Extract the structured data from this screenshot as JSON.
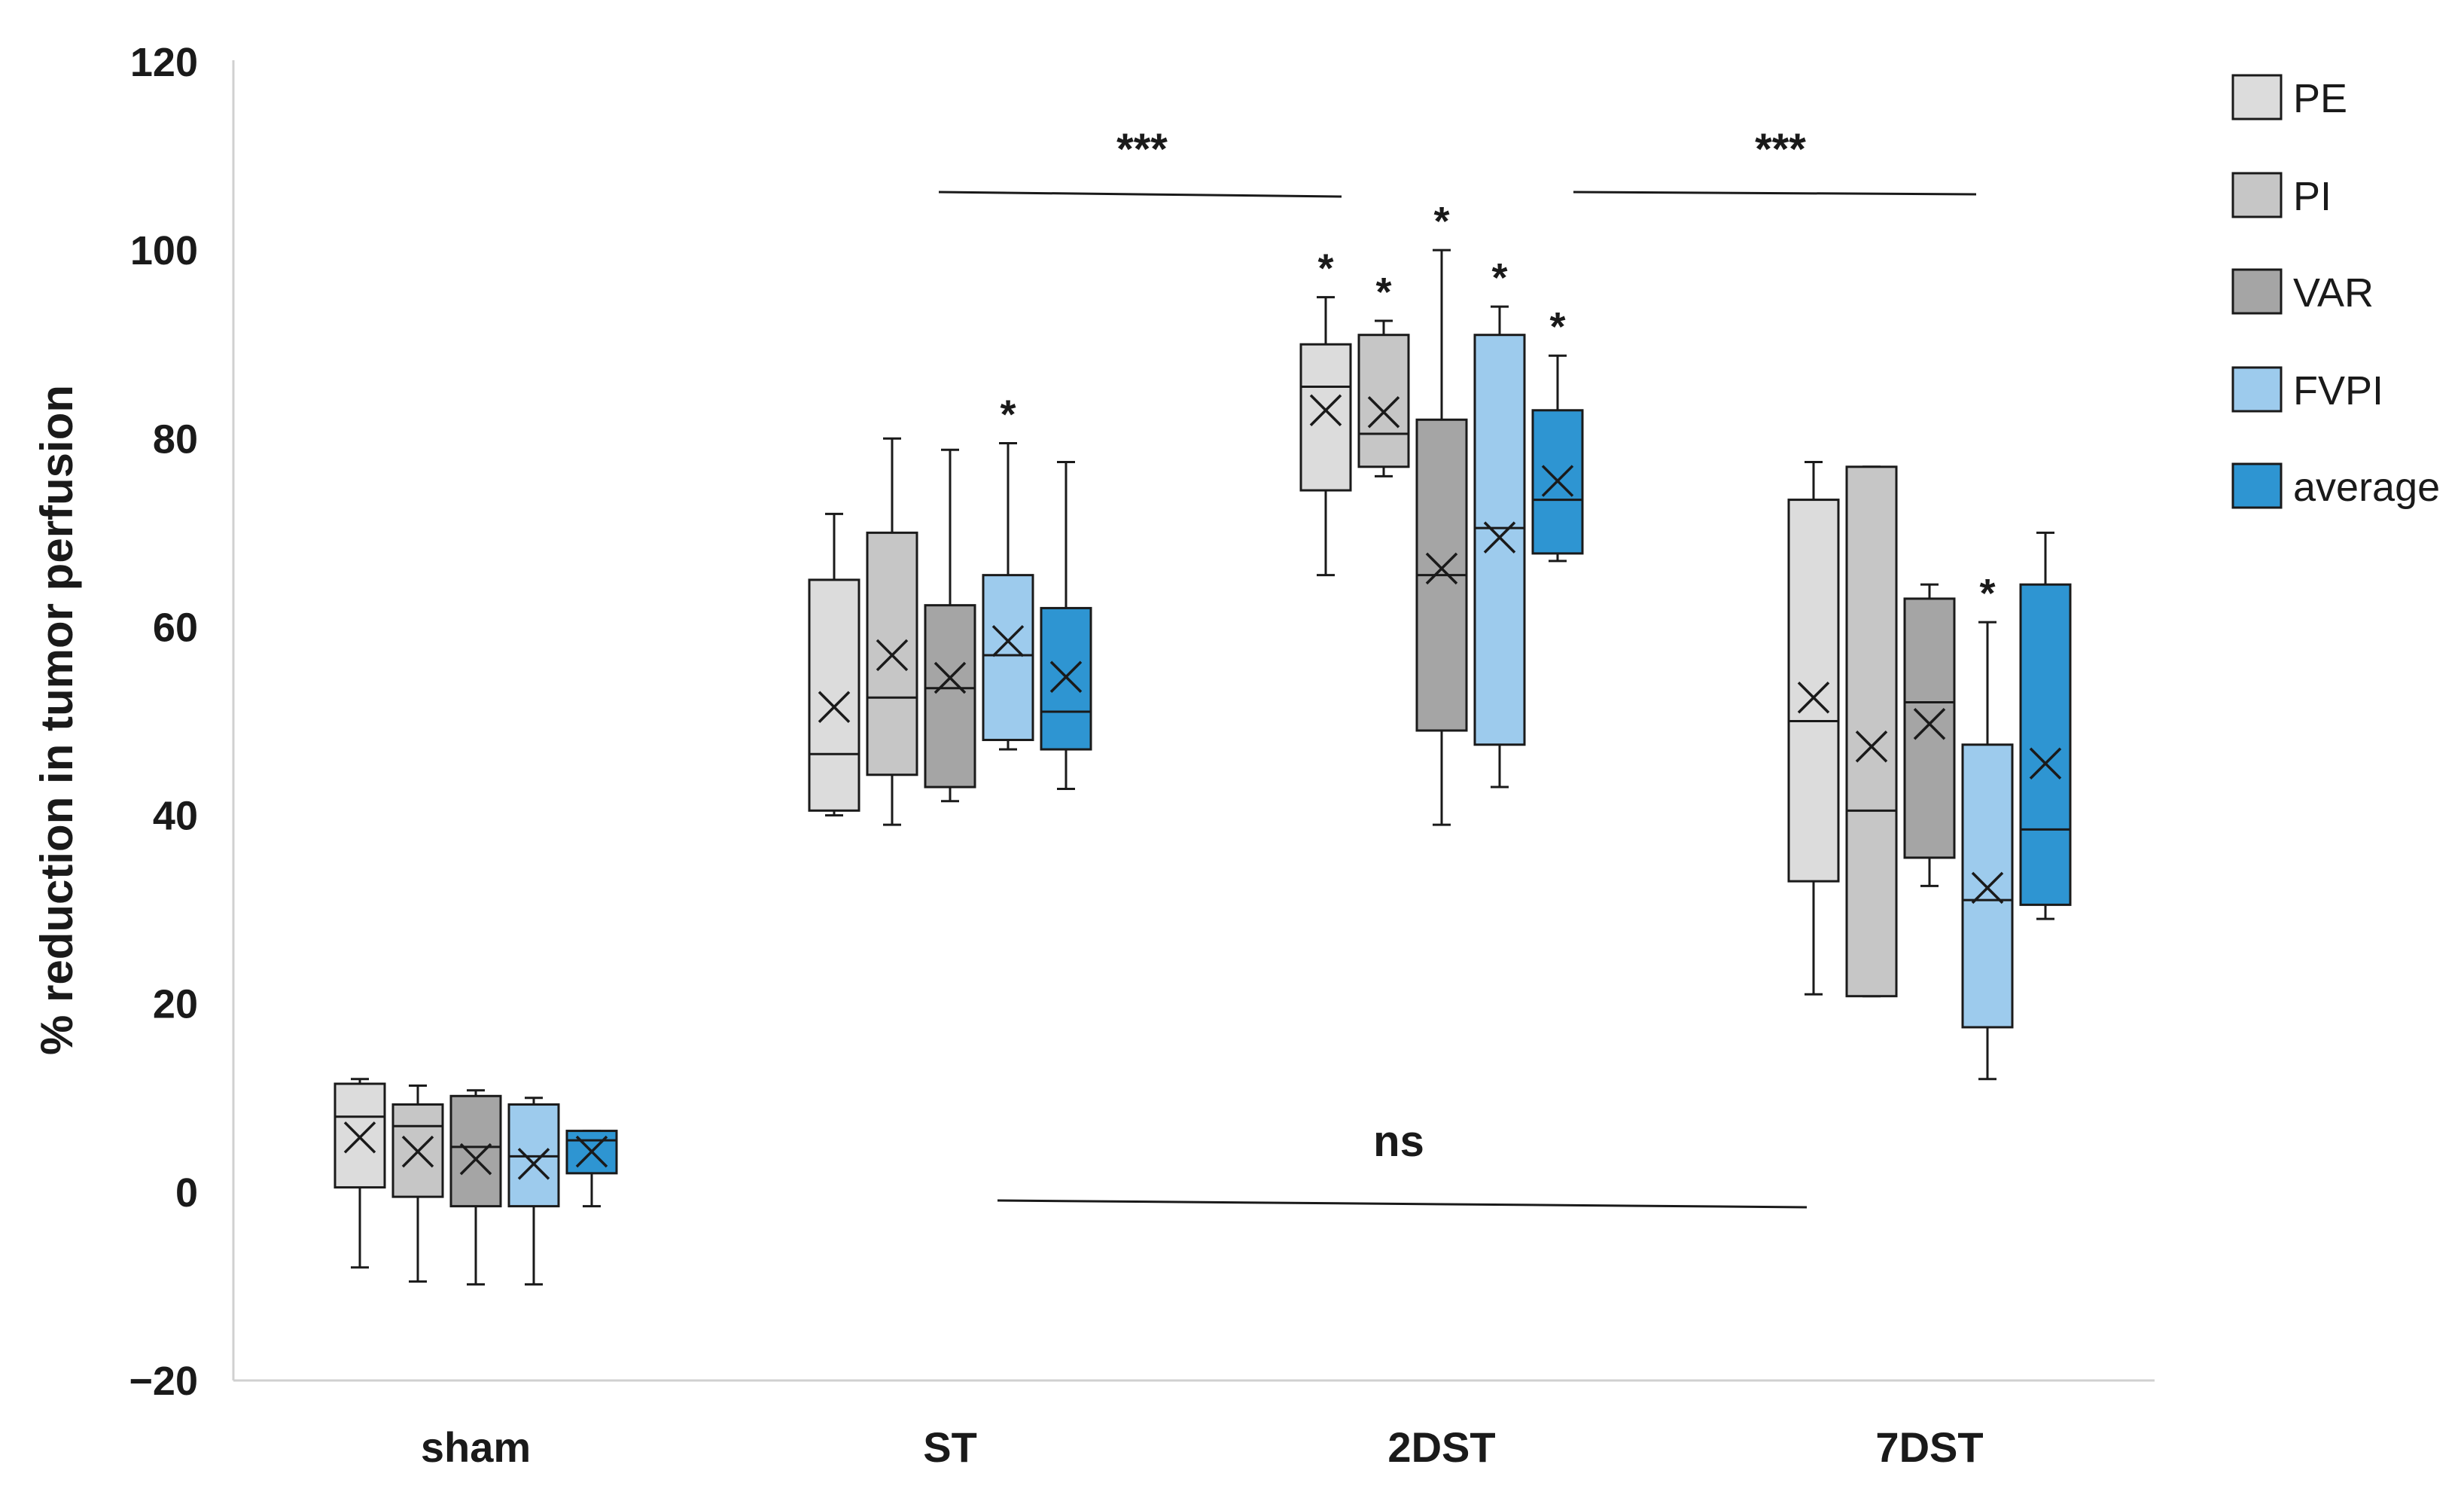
{
  "chart_data": {
    "type": "box",
    "ylabel": "% reduction in tumor perfusion",
    "xlabel": "",
    "ylim": [
      -20,
      120
    ],
    "yticks": [
      -20,
      0,
      20,
      40,
      60,
      80,
      100,
      120
    ],
    "ytick_labels": [
      "−20",
      "0",
      "20",
      "40",
      "60",
      "80",
      "100",
      "120"
    ],
    "categories": [
      "sham",
      "ST",
      "2DST",
      "7DST"
    ],
    "grid": false,
    "legend_position": "top-right",
    "series": [
      {
        "name": "PE",
        "color": "#dcdcdc",
        "boxes": [
          {
            "min": -8,
            "q1": 0.5,
            "median": 8,
            "q3": 11.5,
            "max": 12,
            "mean": 5.8
          },
          {
            "min": 40,
            "q1": 40.5,
            "median": 46.5,
            "q3": 65,
            "max": 72,
            "mean": 51.5
          },
          {
            "min": 65.5,
            "q1": 74.5,
            "median": 85.5,
            "q3": 90,
            "max": 95,
            "mean": 83
          },
          {
            "min": 21,
            "q1": 33,
            "median": 50,
            "q3": 73.5,
            "max": 77.5,
            "mean": 52.5
          }
        ],
        "stars": [
          "",
          "",
          "*",
          ""
        ]
      },
      {
        "name": "PI",
        "color": "#c6c6c6",
        "boxes": [
          {
            "min": -9.5,
            "q1": -0.5,
            "median": 7,
            "q3": 9.3,
            "max": 11.3,
            "mean": 4.3
          },
          {
            "min": 39,
            "q1": 44.3,
            "median": 52.5,
            "q3": 70,
            "max": 80,
            "mean": 57
          },
          {
            "min": 76,
            "q1": 77,
            "median": 80.5,
            "q3": 91,
            "max": 92.5,
            "mean": 82.8
          },
          {
            "min": 20.8,
            "q1": 20.8,
            "median": 40.5,
            "q3": 77,
            "max": 77,
            "mean": 47.3
          }
        ],
        "stars": [
          "",
          "",
          "*",
          ""
        ]
      },
      {
        "name": "VAR",
        "color": "#a5a5a5",
        "boxes": [
          {
            "min": -9.8,
            "q1": -1.5,
            "median": 4.8,
            "q3": 10.2,
            "max": 10.8,
            "mean": 3.5
          },
          {
            "min": 41.5,
            "q1": 43,
            "median": 53.5,
            "q3": 62.3,
            "max": 78.8,
            "mean": 54.6
          },
          {
            "min": 39,
            "q1": 49,
            "median": 65.5,
            "q3": 82,
            "max": 100,
            "mean": 66.2
          },
          {
            "min": 32.5,
            "q1": 35.5,
            "median": 52,
            "q3": 63,
            "max": 64.5,
            "mean": 49.7
          }
        ],
        "stars": [
          "",
          "",
          "*",
          ""
        ]
      },
      {
        "name": "FVPI",
        "color": "#9dcbed",
        "boxes": [
          {
            "min": -9.8,
            "q1": -1.5,
            "median": 3.8,
            "q3": 9.3,
            "max": 10,
            "mean": 3
          },
          {
            "min": 47,
            "q1": 48,
            "median": 57,
            "q3": 65.5,
            "max": 79.5,
            "mean": 58.5
          },
          {
            "min": 43,
            "q1": 47.5,
            "median": 70.5,
            "q3": 91,
            "max": 94,
            "mean": 69.5
          },
          {
            "min": 12,
            "q1": 17.5,
            "median": 31,
            "q3": 47.5,
            "max": 60.5,
            "mean": 32.3
          }
        ],
        "stars": [
          "",
          "*",
          "*",
          "*"
        ]
      },
      {
        "name": "average",
        "color": "#2e95d2",
        "boxes": [
          {
            "min": -1.5,
            "q1": 2,
            "median": 5.5,
            "q3": 6.5,
            "max": 6.5,
            "mean": 4.3
          },
          {
            "min": 42.8,
            "q1": 47,
            "median": 51,
            "q3": 62,
            "max": 77.5,
            "mean": 54.7
          },
          {
            "min": 67,
            "q1": 67.8,
            "median": 73.5,
            "q3": 83,
            "max": 88.8,
            "mean": 75.5
          },
          {
            "min": 29,
            "q1": 30.5,
            "median": 38.5,
            "q3": 64.5,
            "max": 70,
            "mean": 45.5
          }
        ],
        "stars": [
          "",
          "",
          "*",
          ""
        ]
      }
    ],
    "annotations": [
      {
        "text": "***"
      },
      {
        "text": "***"
      },
      {
        "text": "ns"
      }
    ]
  }
}
